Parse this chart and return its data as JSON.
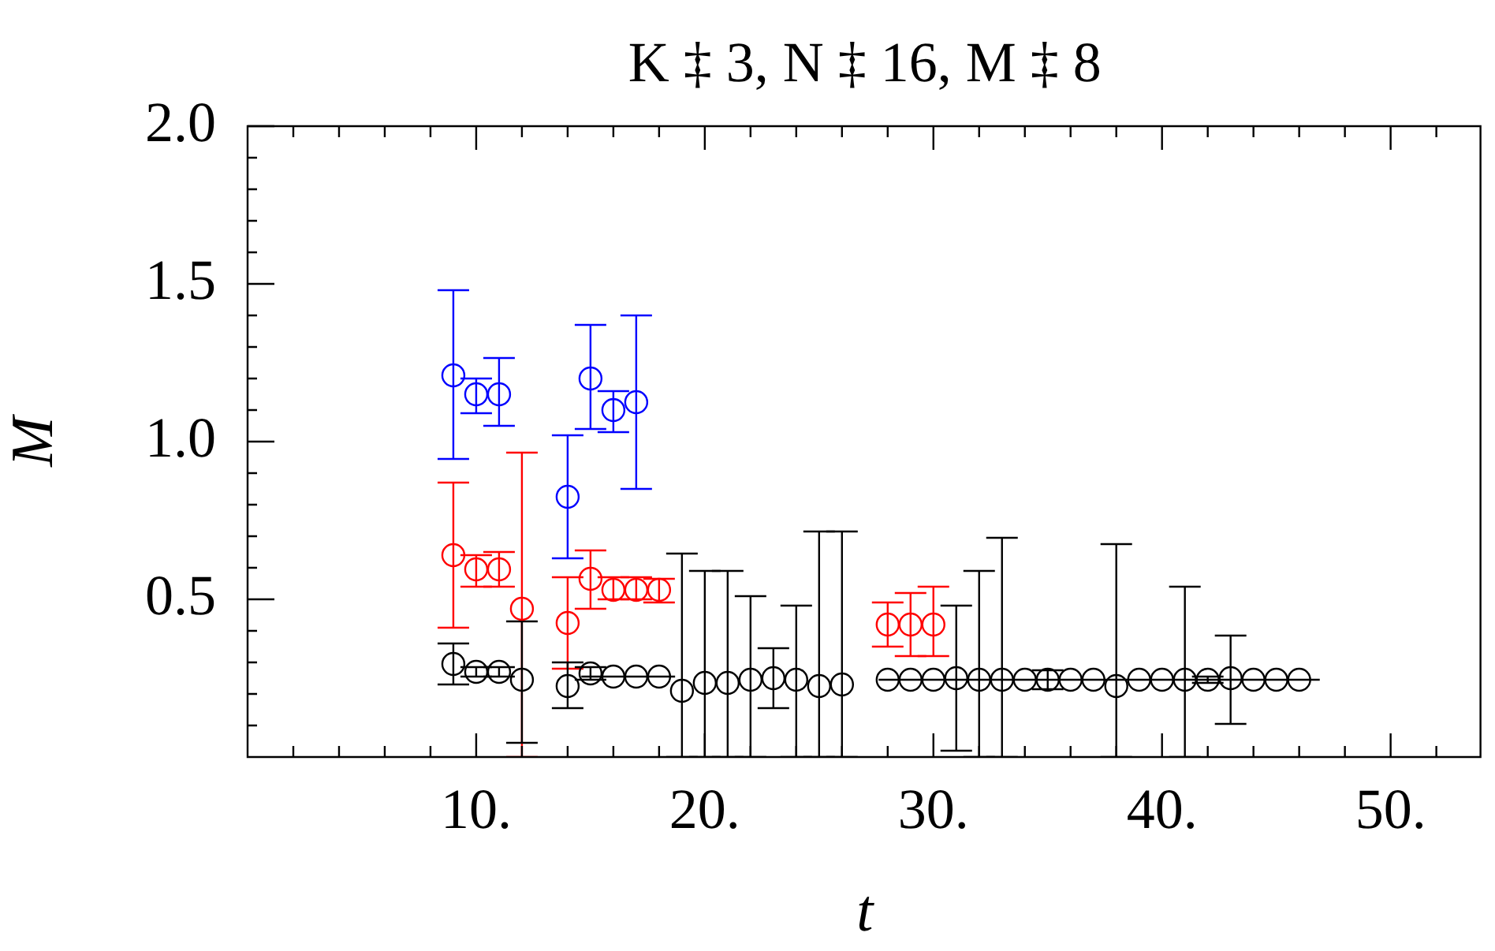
{
  "chart_data": {
    "type": "scatter",
    "title": "K ‡ 3, N ‡ 16, M ‡ 8",
    "xlabel": "t",
    "ylabel": "M",
    "marker": "circle",
    "xlim": [
      0,
      54
    ],
    "xticks": [
      {
        "value": 2,
        "label": null
      },
      {
        "value": 4,
        "label": null
      },
      {
        "value": 6,
        "label": null
      },
      {
        "value": 8,
        "label": null
      },
      {
        "value": 10,
        "label": "10."
      },
      {
        "value": 12,
        "label": null
      },
      {
        "value": 14,
        "label": null
      },
      {
        "value": 16,
        "label": null
      },
      {
        "value": 18,
        "label": null
      },
      {
        "value": 20,
        "label": "20."
      },
      {
        "value": 22,
        "label": null
      },
      {
        "value": 24,
        "label": null
      },
      {
        "value": 26,
        "label": null
      },
      {
        "value": 28,
        "label": null
      },
      {
        "value": 30,
        "label": "30."
      },
      {
        "value": 32,
        "label": null
      },
      {
        "value": 34,
        "label": null
      },
      {
        "value": 36,
        "label": null
      },
      {
        "value": 38,
        "label": null
      },
      {
        "value": 40,
        "label": "40."
      },
      {
        "value": 42,
        "label": null
      },
      {
        "value": 44,
        "label": null
      },
      {
        "value": 46,
        "label": null
      },
      {
        "value": 48,
        "label": null
      },
      {
        "value": 50,
        "label": "50."
      },
      {
        "value": 52,
        "label": null
      }
    ],
    "ylim": [
      0,
      2
    ],
    "yticks": [
      {
        "value": 0.1,
        "label": null
      },
      {
        "value": 0.2,
        "label": null
      },
      {
        "value": 0.3,
        "label": null
      },
      {
        "value": 0.4,
        "label": null
      },
      0.5,
      {
        "value": 0.6,
        "label": null
      },
      {
        "value": 0.7,
        "label": null
      },
      {
        "value": 0.8,
        "label": null
      },
      {
        "value": 0.9,
        "label": null
      },
      {
        "value": 1,
        "label": "1.0"
      },
      {
        "value": 1.1,
        "label": null
      },
      {
        "value": 1.2,
        "label": null
      },
      {
        "value": 1.3,
        "label": null
      },
      {
        "value": 1.4,
        "label": null
      },
      1.5,
      {
        "value": 1.6,
        "label": null
      },
      {
        "value": 1.7,
        "label": null
      },
      {
        "value": 1.8,
        "label": null
      },
      {
        "value": 1.9,
        "label": null
      },
      {
        "value": 2,
        "label": "2.0"
      }
    ],
    "series": [
      {
        "color": "#0000ff",
        "x": [
          9,
          10,
          11,
          14,
          15,
          16,
          17
        ],
        "values": [
          1.21,
          1.15,
          1.15,
          0.825,
          1.2,
          1.1,
          1.125
        ],
        "errors": [
          [
            0.945,
            1.48
          ],
          [
            1.09,
            1.2
          ],
          [
            1.05,
            1.265
          ],
          [
            0.63,
            1.02
          ],
          [
            1.04,
            1.37
          ],
          [
            1.03,
            1.16
          ],
          [
            0.85,
            1.4
          ]
        ]
      },
      {
        "color": "#ff0000",
        "x": [
          9,
          10,
          11,
          12,
          14,
          15,
          16,
          17,
          18,
          28,
          29,
          30
        ],
        "values": [
          0.64,
          0.595,
          0.595,
          0.47,
          0.425,
          0.565,
          0.53,
          0.53,
          0.53,
          0.42,
          0.42,
          0.42
        ],
        "errors": [
          [
            0.41,
            0.87
          ],
          [
            0.54,
            0.64
          ],
          [
            0.54,
            0.65
          ],
          [
            0,
            0.965
          ],
          [
            0.28,
            0.57
          ],
          [
            0.47,
            0.655
          ],
          [
            0.5,
            0.57
          ],
          [
            0.5,
            0.57
          ],
          [
            0.49,
            0.565
          ],
          [
            0.35,
            0.49
          ],
          [
            0.32,
            0.52
          ],
          [
            0.32,
            0.54
          ]
        ]
      },
      {
        "color": "#000000",
        "x": [
          9,
          10,
          11,
          12,
          14,
          15,
          16,
          17,
          18,
          19,
          20,
          21,
          22,
          23,
          24,
          25,
          26,
          28,
          29,
          30,
          31,
          32,
          33,
          34,
          35,
          36,
          37,
          38,
          39,
          40,
          41,
          42,
          43,
          44,
          45,
          46
        ],
        "values": [
          0.295,
          0.27,
          0.27,
          0.245,
          0.225,
          0.265,
          0.255,
          0.255,
          0.255,
          0.21,
          0.235,
          0.235,
          0.245,
          0.25,
          0.245,
          0.225,
          0.23,
          0.245,
          0.245,
          0.245,
          0.25,
          0.245,
          0.245,
          0.245,
          0.245,
          0.245,
          0.245,
          0.225,
          0.245,
          0.245,
          0.245,
          0.245,
          0.25,
          0.245,
          0.245,
          0.245
        ],
        "errors": [
          [
            0.23,
            0.36
          ],
          [
            0.255,
            0.285
          ],
          [
            0.255,
            0.285
          ],
          [
            0.045,
            0.43
          ],
          [
            0.155,
            0.3
          ],
          [
            0.245,
            0.285
          ],
          null,
          null,
          null,
          [
            0,
            0.645
          ],
          [
            0,
            0.59
          ],
          [
            0,
            0.59
          ],
          [
            0,
            0.51
          ],
          [
            0.155,
            0.345
          ],
          [
            0,
            0.48
          ],
          [
            0,
            0.715
          ],
          [
            0,
            0.715
          ],
          null,
          null,
          null,
          [
            0.02,
            0.48
          ],
          [
            0,
            0.59
          ],
          [
            0,
            0.695
          ],
          null,
          [
            0.215,
            0.275
          ],
          null,
          null,
          [
            0,
            0.675
          ],
          null,
          null,
          [
            0,
            0.54
          ],
          [
            0.235,
            0.255
          ],
          [
            0.105,
            0.385
          ],
          null,
          null,
          null
        ]
      },
      {
        "type": "line",
        "marker": "none",
        "color": "#000000",
        "x": [
          14.6,
          18.7
        ],
        "values": [
          0.255,
          0.255
        ]
      },
      {
        "type": "line",
        "marker": "none",
        "color": "#000000",
        "x": [
          27.6,
          46.9
        ],
        "values": [
          0.245,
          0.245
        ]
      }
    ]
  }
}
